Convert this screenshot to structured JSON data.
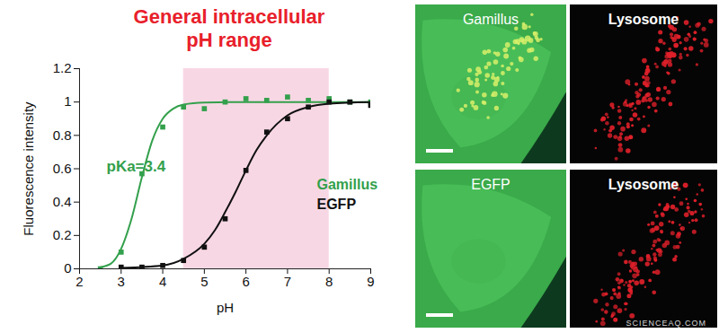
{
  "chart_data": {
    "type": "line",
    "title": "General intracellular\npH range",
    "x_label": "pH",
    "y_label": "Fluorescence intensity",
    "xlim": [
      2,
      9
    ],
    "xticks": [
      2,
      3,
      4,
      5,
      6,
      7,
      8,
      9
    ],
    "ylim": [
      0,
      1.2
    ],
    "yticks": [
      0,
      0.2,
      0.4,
      0.6,
      0.8,
      1,
      1.2
    ],
    "grid": false,
    "legend": "right",
    "shaded_range": {
      "x": [
        4.5,
        8
      ],
      "color": "#f8d7e4"
    },
    "annotations": [
      "pKa=3.4"
    ],
    "series": [
      {
        "name": "Gamillus",
        "type": "line",
        "color": "#33a04c",
        "x": [
          2.5,
          2.75,
          3,
          3.25,
          3.5,
          3.75,
          4,
          4.25,
          4.5,
          5,
          6,
          7,
          8,
          9
        ],
        "values": [
          0.01,
          0.03,
          0.12,
          0.3,
          0.55,
          0.77,
          0.9,
          0.96,
          0.985,
          0.997,
          1,
          1,
          1,
          1
        ]
      },
      {
        "name": "Gamillus",
        "type": "scatter",
        "marker": "square",
        "color": "#33a04c",
        "x": [
          2.5,
          3,
          3.5,
          4,
          4.5,
          5,
          5.5,
          6,
          6.5,
          7,
          7.5,
          8,
          8.5,
          9
        ],
        "values": [
          0,
          0.1,
          0.57,
          0.85,
          0.97,
          0.96,
          1,
          1.02,
          1.01,
          1.03,
          1.01,
          1.02,
          1,
          1
        ]
      },
      {
        "name": "EGFP",
        "type": "line",
        "color": "#111111",
        "x": [
          3,
          4,
          4.5,
          5,
          5.25,
          5.5,
          5.75,
          6,
          6.25,
          6.5,
          7,
          7.5,
          8,
          9
        ],
        "values": [
          0.005,
          0.02,
          0.06,
          0.15,
          0.23,
          0.34,
          0.46,
          0.59,
          0.71,
          0.8,
          0.92,
          0.97,
          0.99,
          1
        ]
      },
      {
        "name": "EGFP",
        "type": "scatter",
        "marker": "square",
        "color": "#111111",
        "x": [
          3,
          3.5,
          4,
          4.5,
          5,
          5.5,
          6,
          6.5,
          7,
          7.5,
          8,
          8.5,
          9
        ],
        "values": [
          0.01,
          0.01,
          0.02,
          0.05,
          0.13,
          0.3,
          0.59,
          0.82,
          0.9,
          0.97,
          1,
          1,
          0.98
        ]
      }
    ]
  },
  "images": [
    {
      "label": "Gamillus",
      "kind": "cell",
      "puncta": true
    },
    {
      "label": "Lysosome",
      "kind": "lysosome"
    },
    {
      "label": "EGFP",
      "kind": "cell",
      "puncta": false
    },
    {
      "label": "Lysosome",
      "kind": "lysosome"
    }
  ],
  "watermark": "SCIENCEAQ.COM"
}
